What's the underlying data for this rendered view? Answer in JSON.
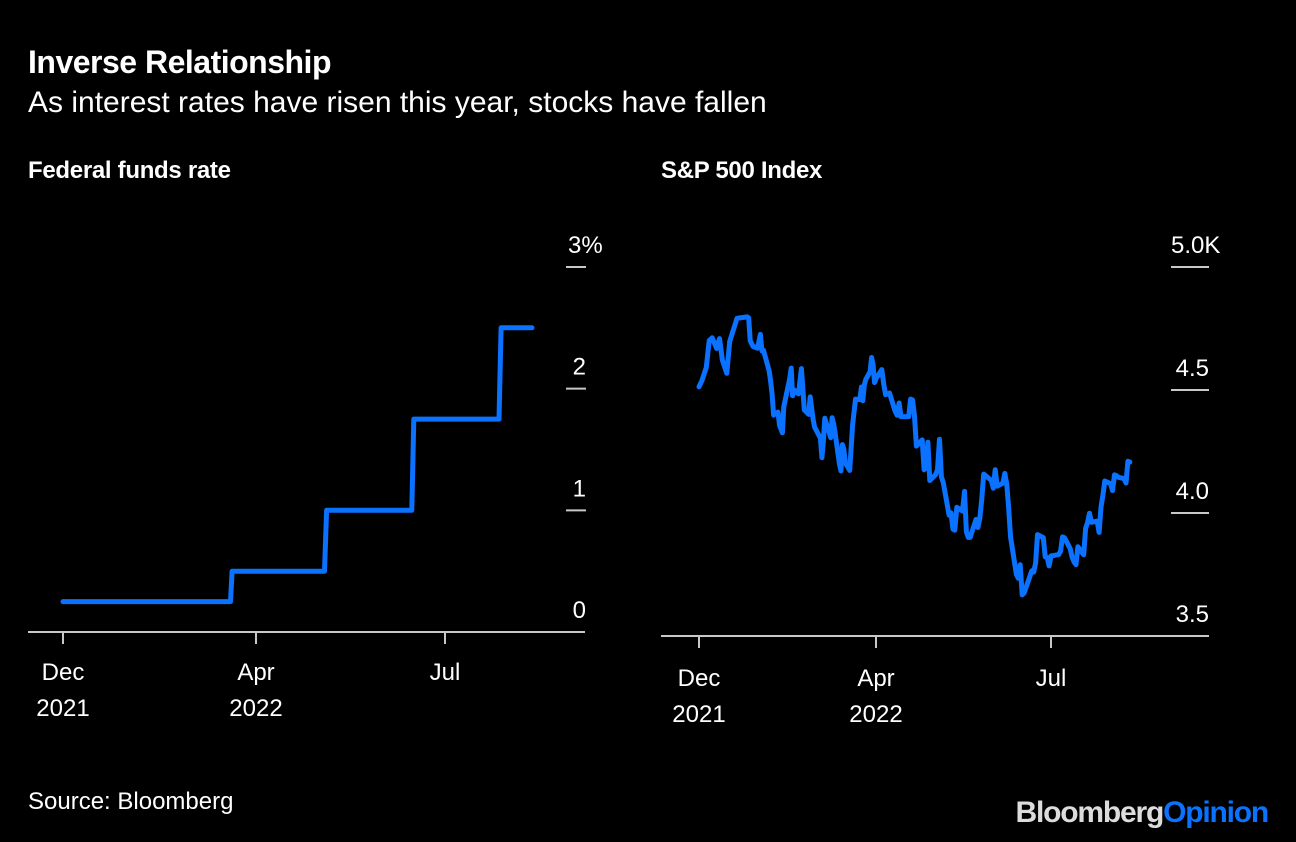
{
  "title": "Inverse Relationship",
  "subtitle": "As interest rates have risen this year, stocks have fallen",
  "source": "Source: Bloomberg",
  "logo": {
    "part1": "Bloomberg",
    "part2": "Opinion"
  },
  "colors": {
    "background": "#000000",
    "line": "#0a72ff",
    "axis": "#c8c8c8",
    "text": "#ffffff",
    "logo_gray": "#dcdcdc"
  },
  "chart_data": [
    {
      "type": "line",
      "title": "Federal funds rate",
      "xlabel": "",
      "ylabel": "",
      "y_unit": "%",
      "ylim": [
        0,
        3
      ],
      "yticks": [
        {
          "value": 0,
          "label": "0"
        },
        {
          "value": 1,
          "label": "1"
        },
        {
          "value": 2,
          "label": "2"
        },
        {
          "value": 3,
          "label": "3%"
        }
      ],
      "xticks": [
        {
          "date": "2021-12-01",
          "label": [
            "Dec",
            "2021"
          ]
        },
        {
          "date": "2022-04-01",
          "label": [
            "Apr",
            "2022"
          ]
        },
        {
          "date": "2022-07-01",
          "label": [
            "Jul",
            ""
          ]
        }
      ],
      "grid": false,
      "step": true,
      "series": [
        {
          "name": "Federal funds rate",
          "points": [
            {
              "date": "2021-12-01",
              "value": 0.25
            },
            {
              "date": "2022-03-16",
              "value": 0.25
            },
            {
              "date": "2022-03-17",
              "value": 0.5
            },
            {
              "date": "2022-05-04",
              "value": 0.5
            },
            {
              "date": "2022-05-05",
              "value": 1.0
            },
            {
              "date": "2022-06-15",
              "value": 1.0
            },
            {
              "date": "2022-06-16",
              "value": 1.75
            },
            {
              "date": "2022-07-27",
              "value": 1.75
            },
            {
              "date": "2022-07-28",
              "value": 2.5
            },
            {
              "date": "2022-08-15",
              "value": 2.5
            }
          ]
        }
      ]
    },
    {
      "type": "line",
      "title": "S&P 500 Index",
      "xlabel": "",
      "ylabel": "",
      "y_unit": "K",
      "ylim": [
        3500,
        5000
      ],
      "yticks": [
        {
          "value": 3500,
          "label": "3.5"
        },
        {
          "value": 4000,
          "label": "4.0"
        },
        {
          "value": 4500,
          "label": "4.5"
        },
        {
          "value": 5000,
          "label": "5.0K"
        }
      ],
      "xticks": [
        {
          "date": "2021-12-01",
          "label": [
            "Dec",
            "2021"
          ]
        },
        {
          "date": "2022-04-01",
          "label": [
            "Apr",
            "2022"
          ]
        },
        {
          "date": "2022-07-01",
          "label": [
            "Jul",
            ""
          ]
        }
      ],
      "grid": false,
      "series": [
        {
          "name": "S&P 500 Index",
          "points": [
            {
              "date": "2021-12-01",
              "value": 4513
            },
            {
              "date": "2021-12-03",
              "value": 4538
            },
            {
              "date": "2021-12-06",
              "value": 4592
            },
            {
              "date": "2021-12-08",
              "value": 4701
            },
            {
              "date": "2021-12-10",
              "value": 4712
            },
            {
              "date": "2021-12-13",
              "value": 4669
            },
            {
              "date": "2021-12-15",
              "value": 4709
            },
            {
              "date": "2021-12-17",
              "value": 4621
            },
            {
              "date": "2021-12-20",
              "value": 4568
            },
            {
              "date": "2021-12-22",
              "value": 4697
            },
            {
              "date": "2021-12-27",
              "value": 4791
            },
            {
              "date": "2021-12-29",
              "value": 4793
            },
            {
              "date": "2022-01-03",
              "value": 4797
            },
            {
              "date": "2022-01-04",
              "value": 4793
            },
            {
              "date": "2022-01-05",
              "value": 4700
            },
            {
              "date": "2022-01-07",
              "value": 4677
            },
            {
              "date": "2022-01-10",
              "value": 4670
            },
            {
              "date": "2022-01-12",
              "value": 4726
            },
            {
              "date": "2022-01-13",
              "value": 4659
            },
            {
              "date": "2022-01-14",
              "value": 4662
            },
            {
              "date": "2022-01-18",
              "value": 4577
            },
            {
              "date": "2022-01-19",
              "value": 4533
            },
            {
              "date": "2022-01-20",
              "value": 4483
            },
            {
              "date": "2022-01-21",
              "value": 4398
            },
            {
              "date": "2022-01-24",
              "value": 4410
            },
            {
              "date": "2022-01-25",
              "value": 4357
            },
            {
              "date": "2022-01-27",
              "value": 4326
            },
            {
              "date": "2022-01-28",
              "value": 4432
            },
            {
              "date": "2022-02-01",
              "value": 4546
            },
            {
              "date": "2022-02-02",
              "value": 4589
            },
            {
              "date": "2022-02-03",
              "value": 4477
            },
            {
              "date": "2022-02-04",
              "value": 4500
            },
            {
              "date": "2022-02-07",
              "value": 4484
            },
            {
              "date": "2022-02-09",
              "value": 4587
            },
            {
              "date": "2022-02-10",
              "value": 4504
            },
            {
              "date": "2022-02-11",
              "value": 4419
            },
            {
              "date": "2022-02-14",
              "value": 4401
            },
            {
              "date": "2022-02-15",
              "value": 4472
            },
            {
              "date": "2022-02-17",
              "value": 4381
            },
            {
              "date": "2022-02-18",
              "value": 4349
            },
            {
              "date": "2022-02-22",
              "value": 4304
            },
            {
              "date": "2022-02-23",
              "value": 4225
            },
            {
              "date": "2022-02-24",
              "value": 4288
            },
            {
              "date": "2022-02-25",
              "value": 4385
            },
            {
              "date": "2022-03-01",
              "value": 4306
            },
            {
              "date": "2022-03-02",
              "value": 4387
            },
            {
              "date": "2022-03-03",
              "value": 4363
            },
            {
              "date": "2022-03-04",
              "value": 4329
            },
            {
              "date": "2022-03-07",
              "value": 4201
            },
            {
              "date": "2022-03-08",
              "value": 4171
            },
            {
              "date": "2022-03-09",
              "value": 4278
            },
            {
              "date": "2022-03-10",
              "value": 4260
            },
            {
              "date": "2022-03-11",
              "value": 4204
            },
            {
              "date": "2022-03-14",
              "value": 4173
            },
            {
              "date": "2022-03-15",
              "value": 4262
            },
            {
              "date": "2022-03-16",
              "value": 4358
            },
            {
              "date": "2022-03-17",
              "value": 4412
            },
            {
              "date": "2022-03-18",
              "value": 4463
            },
            {
              "date": "2022-03-21",
              "value": 4461
            },
            {
              "date": "2022-03-22",
              "value": 4512
            },
            {
              "date": "2022-03-23",
              "value": 4456
            },
            {
              "date": "2022-03-24",
              "value": 4520
            },
            {
              "date": "2022-03-25",
              "value": 4543
            },
            {
              "date": "2022-03-28",
              "value": 4575
            },
            {
              "date": "2022-03-29",
              "value": 4632
            },
            {
              "date": "2022-03-30",
              "value": 4602
            },
            {
              "date": "2022-03-31",
              "value": 4530
            },
            {
              "date": "2022-04-01",
              "value": 4546
            },
            {
              "date": "2022-04-04",
              "value": 4583
            },
            {
              "date": "2022-04-05",
              "value": 4525
            },
            {
              "date": "2022-04-06",
              "value": 4481
            },
            {
              "date": "2022-04-08",
              "value": 4488
            },
            {
              "date": "2022-04-11",
              "value": 4413
            },
            {
              "date": "2022-04-12",
              "value": 4397
            },
            {
              "date": "2022-04-13",
              "value": 4447
            },
            {
              "date": "2022-04-14",
              "value": 4392
            },
            {
              "date": "2022-04-18",
              "value": 4392
            },
            {
              "date": "2022-04-19",
              "value": 4463
            },
            {
              "date": "2022-04-20",
              "value": 4460
            },
            {
              "date": "2022-04-21",
              "value": 4394
            },
            {
              "date": "2022-04-22",
              "value": 4272
            },
            {
              "date": "2022-04-25",
              "value": 4297
            },
            {
              "date": "2022-04-26",
              "value": 4176
            },
            {
              "date": "2022-04-27",
              "value": 4183
            },
            {
              "date": "2022-04-28",
              "value": 4288
            },
            {
              "date": "2022-04-29",
              "value": 4132
            },
            {
              "date": "2022-05-02",
              "value": 4156
            },
            {
              "date": "2022-05-03",
              "value": 4176
            },
            {
              "date": "2022-05-04",
              "value": 4300
            },
            {
              "date": "2022-05-05",
              "value": 4147
            },
            {
              "date": "2022-05-06",
              "value": 4123
            },
            {
              "date": "2022-05-09",
              "value": 3991
            },
            {
              "date": "2022-05-10",
              "value": 4001
            },
            {
              "date": "2022-05-11",
              "value": 3935
            },
            {
              "date": "2022-05-12",
              "value": 3930
            },
            {
              "date": "2022-05-13",
              "value": 4023
            },
            {
              "date": "2022-05-16",
              "value": 4008
            },
            {
              "date": "2022-05-17",
              "value": 4088
            },
            {
              "date": "2022-05-18",
              "value": 3923
            },
            {
              "date": "2022-05-19",
              "value": 3901
            },
            {
              "date": "2022-05-20",
              "value": 3901
            },
            {
              "date": "2022-05-23",
              "value": 3974
            },
            {
              "date": "2022-05-24",
              "value": 3941
            },
            {
              "date": "2022-05-25",
              "value": 3978
            },
            {
              "date": "2022-05-26",
              "value": 4058
            },
            {
              "date": "2022-05-27",
              "value": 4158
            },
            {
              "date": "2022-05-31",
              "value": 4132
            },
            {
              "date": "2022-06-01",
              "value": 4101
            },
            {
              "date": "2022-06-02",
              "value": 4176
            },
            {
              "date": "2022-06-03",
              "value": 4109
            },
            {
              "date": "2022-06-06",
              "value": 4121
            },
            {
              "date": "2022-06-07",
              "value": 4161
            },
            {
              "date": "2022-06-08",
              "value": 4116
            },
            {
              "date": "2022-06-09",
              "value": 4018
            },
            {
              "date": "2022-06-10",
              "value": 3901
            },
            {
              "date": "2022-06-13",
              "value": 3750
            },
            {
              "date": "2022-06-14",
              "value": 3735
            },
            {
              "date": "2022-06-15",
              "value": 3790
            },
            {
              "date": "2022-06-16",
              "value": 3667
            },
            {
              "date": "2022-06-17",
              "value": 3675
            },
            {
              "date": "2022-06-21",
              "value": 3765
            },
            {
              "date": "2022-06-22",
              "value": 3760
            },
            {
              "date": "2022-06-23",
              "value": 3796
            },
            {
              "date": "2022-06-24",
              "value": 3912
            },
            {
              "date": "2022-06-27",
              "value": 3900
            },
            {
              "date": "2022-06-28",
              "value": 3822
            },
            {
              "date": "2022-06-29",
              "value": 3819
            },
            {
              "date": "2022-06-30",
              "value": 3785
            },
            {
              "date": "2022-07-01",
              "value": 3825
            },
            {
              "date": "2022-07-05",
              "value": 3831
            },
            {
              "date": "2022-07-06",
              "value": 3845
            },
            {
              "date": "2022-07-07",
              "value": 3903
            },
            {
              "date": "2022-07-08",
              "value": 3899
            },
            {
              "date": "2022-07-11",
              "value": 3855
            },
            {
              "date": "2022-07-12",
              "value": 3819
            },
            {
              "date": "2022-07-13",
              "value": 3801
            },
            {
              "date": "2022-07-14",
              "value": 3790
            },
            {
              "date": "2022-07-15",
              "value": 3863
            },
            {
              "date": "2022-07-18",
              "value": 3830
            },
            {
              "date": "2022-07-19",
              "value": 3937
            },
            {
              "date": "2022-07-20",
              "value": 3960
            },
            {
              "date": "2022-07-21",
              "value": 3999
            },
            {
              "date": "2022-07-22",
              "value": 3962
            },
            {
              "date": "2022-07-25",
              "value": 3967
            },
            {
              "date": "2022-07-26",
              "value": 3921
            },
            {
              "date": "2022-07-27",
              "value": 4024
            },
            {
              "date": "2022-07-28",
              "value": 4072
            },
            {
              "date": "2022-07-29",
              "value": 4130
            },
            {
              "date": "2022-08-01",
              "value": 4119
            },
            {
              "date": "2022-08-02",
              "value": 4091
            },
            {
              "date": "2022-08-03",
              "value": 4155
            },
            {
              "date": "2022-08-04",
              "value": 4152
            },
            {
              "date": "2022-08-05",
              "value": 4145
            },
            {
              "date": "2022-08-08",
              "value": 4140
            },
            {
              "date": "2022-08-09",
              "value": 4122
            },
            {
              "date": "2022-08-10",
              "value": 4210
            },
            {
              "date": "2022-08-11",
              "value": 4207
            }
          ]
        }
      ]
    }
  ]
}
